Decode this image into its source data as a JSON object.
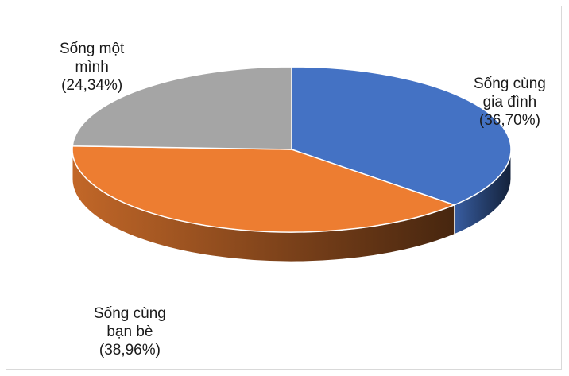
{
  "chart_data": {
    "type": "pie",
    "title": "",
    "slices": [
      {
        "label": [
          "Sống cùng",
          "gia đình"
        ],
        "value_text": "(36,70%)",
        "value": 36.7,
        "color": "#4472c4"
      },
      {
        "label": [
          "Sống cùng",
          "bạn bè"
        ],
        "value_text": "(38,96%)",
        "value": 38.96,
        "color": "#ed7d31"
      },
      {
        "label": [
          "Sống một",
          "mình"
        ],
        "value_text": "(24,34%)",
        "value": 24.34,
        "color": "#a5a5a5"
      }
    ]
  }
}
